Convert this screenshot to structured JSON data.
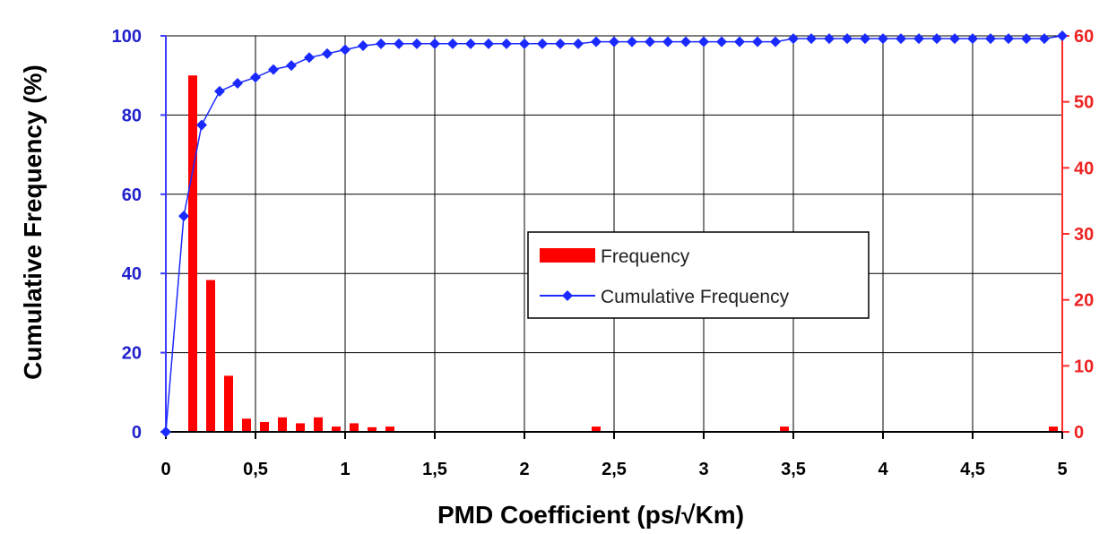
{
  "chart_data": {
    "type": "bar+line",
    "title": "",
    "xlabel": "PMD Coefficient (ps/√Km)",
    "ylabel_left": "Cumulative Frequency (%)",
    "ylabel_right": "",
    "xlim": [
      0,
      5
    ],
    "ylim_left": [
      0,
      100
    ],
    "ylim_right": [
      0,
      60
    ],
    "x_ticks": [
      "0",
      "0,5",
      "1",
      "1,5",
      "2",
      "2,5",
      "3",
      "3,5",
      "4",
      "4,5",
      "5"
    ],
    "y_left_ticks": [
      "0",
      "20",
      "40",
      "60",
      "80",
      "100"
    ],
    "y_right_ticks": [
      "0",
      "10",
      "20",
      "30",
      "40",
      "50",
      "60"
    ],
    "grid": true,
    "legend_position": "center-right",
    "colors": {
      "bars": "#ff0000",
      "line": "#1a2aff",
      "left_axis": "#2222cc",
      "right_axis": "#ee2222"
    },
    "series": [
      {
        "name": "Frequency",
        "type": "bar",
        "axis": "right",
        "x": [
          0.15,
          0.25,
          0.35,
          0.45,
          0.55,
          0.65,
          0.75,
          0.85,
          0.95,
          1.05,
          1.15,
          1.25,
          2.4,
          3.45,
          4.95
        ],
        "values": [
          54,
          23,
          8.5,
          2,
          1.5,
          2.2,
          1.3,
          2.2,
          0.8,
          1.3,
          0.7,
          0.8,
          0.8,
          0.8,
          0.8
        ]
      },
      {
        "name": "Cumulative Frequency",
        "type": "line",
        "axis": "left",
        "x": [
          0,
          0.1,
          0.2,
          0.3,
          0.4,
          0.5,
          0.6,
          0.7,
          0.8,
          0.9,
          1.0,
          1.1,
          1.2,
          1.3,
          1.4,
          1.5,
          1.6,
          1.7,
          1.8,
          1.9,
          2.0,
          2.1,
          2.2,
          2.3,
          2.4,
          2.5,
          2.6,
          2.7,
          2.8,
          2.9,
          3.0,
          3.1,
          3.2,
          3.3,
          3.4,
          3.5,
          3.6,
          3.7,
          3.8,
          3.9,
          4.0,
          4.1,
          4.2,
          4.3,
          4.4,
          4.5,
          4.6,
          4.7,
          4.8,
          4.9,
          5.0
        ],
        "values": [
          0,
          54.5,
          77.5,
          86,
          88,
          89.5,
          91.5,
          92.5,
          94.5,
          95.5,
          96.5,
          97.5,
          98,
          98,
          98,
          98,
          98,
          98,
          98,
          98,
          98,
          98,
          98,
          98,
          98.5,
          98.5,
          98.5,
          98.5,
          98.5,
          98.5,
          98.5,
          98.5,
          98.5,
          98.5,
          98.5,
          99.3,
          99.3,
          99.3,
          99.3,
          99.3,
          99.3,
          99.3,
          99.3,
          99.3,
          99.3,
          99.3,
          99.3,
          99.3,
          99.3,
          99.3,
          100
        ]
      }
    ]
  }
}
